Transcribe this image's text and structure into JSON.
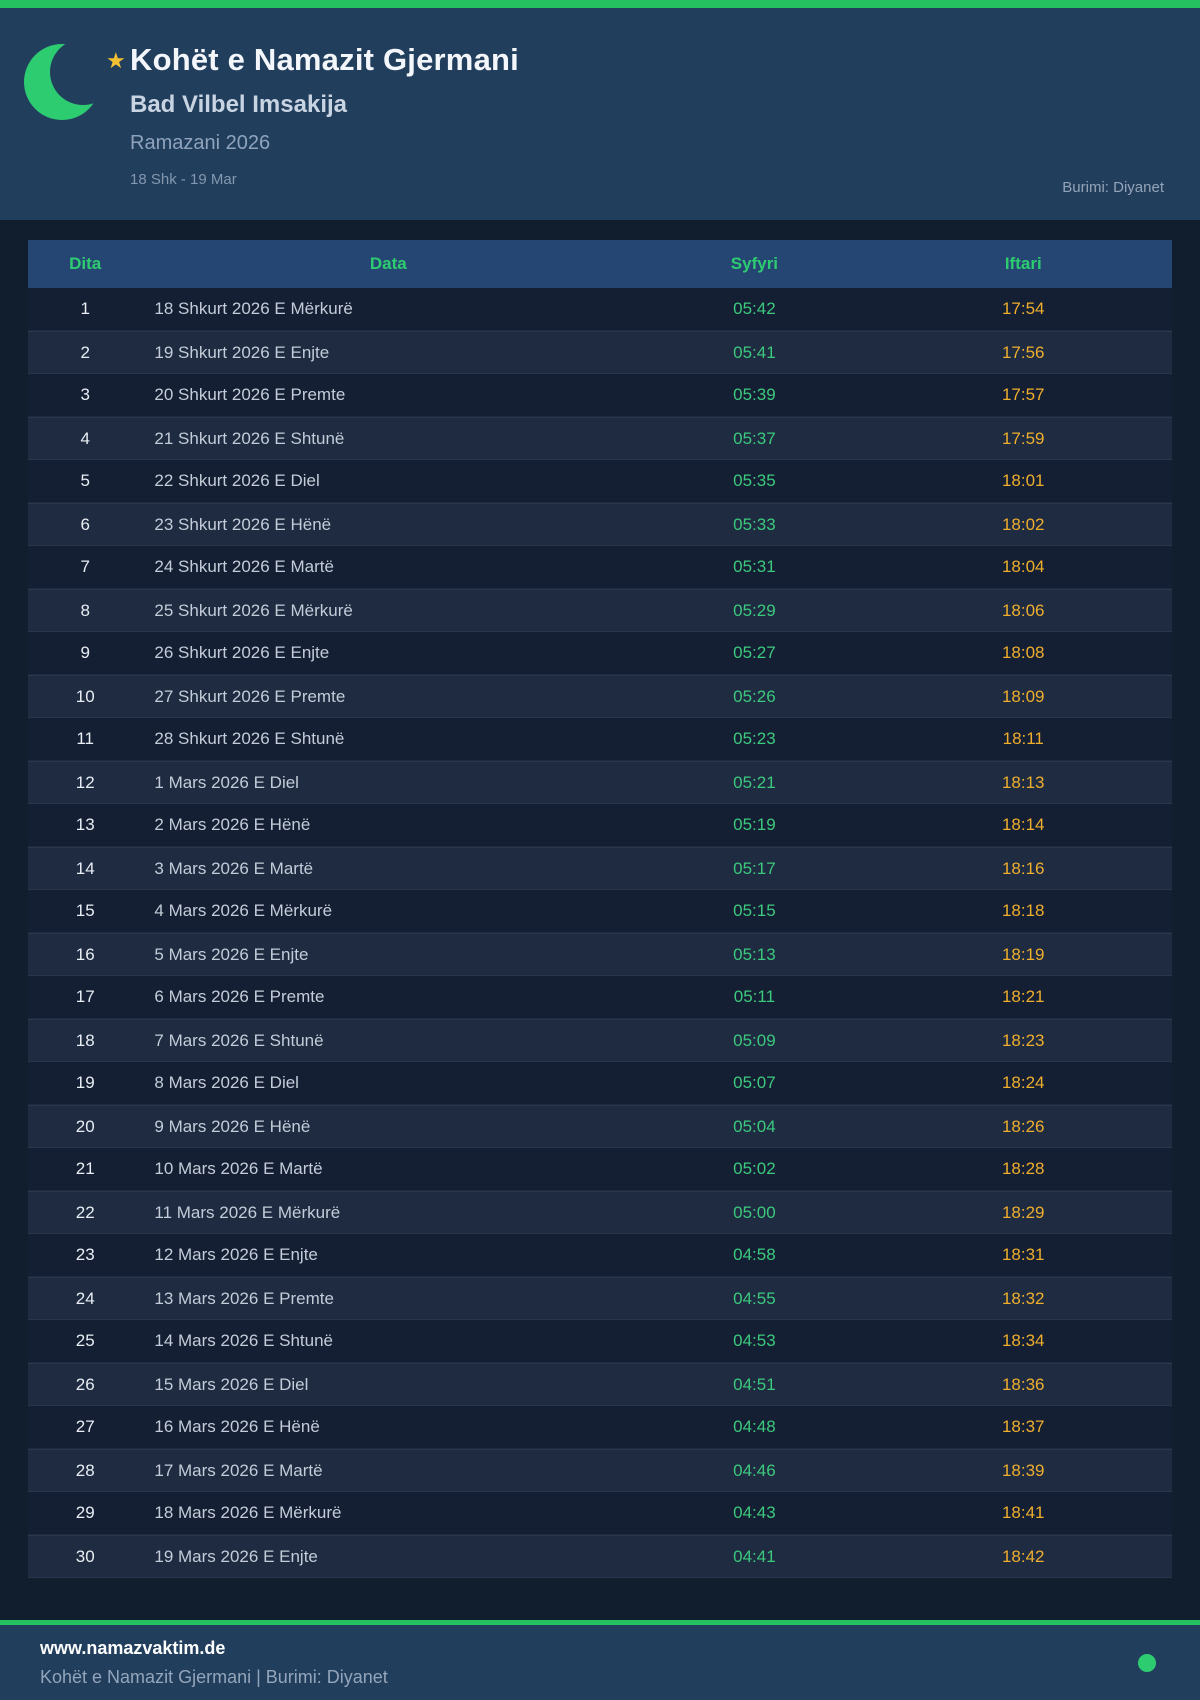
{
  "header": {
    "title": "Kohët e Namazit Gjermani",
    "subtitle": "Bad Vilbel Imsakija",
    "season": "Ramazani 2026",
    "date_range": "18 Shk - 19 Mar",
    "source": "Burimi: Diyanet",
    "star_glyph": "★"
  },
  "table": {
    "columns": [
      "Dita",
      "Data",
      "Syfyri",
      "Iftari"
    ],
    "rows": [
      {
        "day": "1",
        "date": "18 Shkurt 2026 E Mërkurë",
        "syfyri": "05:42",
        "iftari": "17:54"
      },
      {
        "day": "2",
        "date": "19 Shkurt 2026 E Enjte",
        "syfyri": "05:41",
        "iftari": "17:56"
      },
      {
        "day": "3",
        "date": "20 Shkurt 2026 E Premte",
        "syfyri": "05:39",
        "iftari": "17:57"
      },
      {
        "day": "4",
        "date": "21 Shkurt 2026 E Shtunë",
        "syfyri": "05:37",
        "iftari": "17:59"
      },
      {
        "day": "5",
        "date": "22 Shkurt 2026 E Diel",
        "syfyri": "05:35",
        "iftari": "18:01"
      },
      {
        "day": "6",
        "date": "23 Shkurt 2026 E Hënë",
        "syfyri": "05:33",
        "iftari": "18:02"
      },
      {
        "day": "7",
        "date": "24 Shkurt 2026 E Martë",
        "syfyri": "05:31",
        "iftari": "18:04"
      },
      {
        "day": "8",
        "date": "25 Shkurt 2026 E Mërkurë",
        "syfyri": "05:29",
        "iftari": "18:06"
      },
      {
        "day": "9",
        "date": "26 Shkurt 2026 E Enjte",
        "syfyri": "05:27",
        "iftari": "18:08"
      },
      {
        "day": "10",
        "date": "27 Shkurt 2026 E Premte",
        "syfyri": "05:26",
        "iftari": "18:09"
      },
      {
        "day": "11",
        "date": "28 Shkurt 2026 E Shtunë",
        "syfyri": "05:23",
        "iftari": "18:11"
      },
      {
        "day": "12",
        "date": "1 Mars 2026 E Diel",
        "syfyri": "05:21",
        "iftari": "18:13"
      },
      {
        "day": "13",
        "date": "2 Mars 2026 E Hënë",
        "syfyri": "05:19",
        "iftari": "18:14"
      },
      {
        "day": "14",
        "date": "3 Mars 2026 E Martë",
        "syfyri": "05:17",
        "iftari": "18:16"
      },
      {
        "day": "15",
        "date": "4 Mars 2026 E Mërkurë",
        "syfyri": "05:15",
        "iftari": "18:18"
      },
      {
        "day": "16",
        "date": "5 Mars 2026 E Enjte",
        "syfyri": "05:13",
        "iftari": "18:19"
      },
      {
        "day": "17",
        "date": "6 Mars 2026 E Premte",
        "syfyri": "05:11",
        "iftari": "18:21"
      },
      {
        "day": "18",
        "date": "7 Mars 2026 E Shtunë",
        "syfyri": "05:09",
        "iftari": "18:23"
      },
      {
        "day": "19",
        "date": "8 Mars 2026 E Diel",
        "syfyri": "05:07",
        "iftari": "18:24"
      },
      {
        "day": "20",
        "date": "9 Mars 2026 E Hënë",
        "syfyri": "05:04",
        "iftari": "18:26"
      },
      {
        "day": "21",
        "date": "10 Mars 2026 E Martë",
        "syfyri": "05:02",
        "iftari": "18:28"
      },
      {
        "day": "22",
        "date": "11 Mars 2026 E Mërkurë",
        "syfyri": "05:00",
        "iftari": "18:29"
      },
      {
        "day": "23",
        "date": "12 Mars 2026 E Enjte",
        "syfyri": "04:58",
        "iftari": "18:31"
      },
      {
        "day": "24",
        "date": "13 Mars 2026 E Premte",
        "syfyri": "04:55",
        "iftari": "18:32"
      },
      {
        "day": "25",
        "date": "14 Mars 2026 E Shtunë",
        "syfyri": "04:53",
        "iftari": "18:34"
      },
      {
        "day": "26",
        "date": "15 Mars 2026 E Diel",
        "syfyri": "04:51",
        "iftari": "18:36"
      },
      {
        "day": "27",
        "date": "16 Mars 2026 E Hënë",
        "syfyri": "04:48",
        "iftari": "18:37"
      },
      {
        "day": "28",
        "date": "17 Mars 2026 E Martë",
        "syfyri": "04:46",
        "iftari": "18:39"
      },
      {
        "day": "29",
        "date": "18 Mars 2026 E Mërkurë",
        "syfyri": "04:43",
        "iftari": "18:41"
      },
      {
        "day": "30",
        "date": "19 Mars 2026 E Enjte",
        "syfyri": "04:41",
        "iftari": "18:42"
      }
    ]
  },
  "footer": {
    "website": "www.namazvaktim.de",
    "tagline": "Kohët e Namazit Gjermani | Burimi: Diyanet"
  },
  "colors": {
    "accent_green": "#25c05f",
    "column_header_green": "#2ecc71",
    "syfyri_green": "#3cc97d",
    "iftari_gold": "#efae2d",
    "star_gold": "#f3c133",
    "header_navy": "#223e5d",
    "table_header_navy": "#254672",
    "page_bg": "#111e2e",
    "row_odd_bg": "#151f33",
    "row_even_bg": "#1e2b41"
  }
}
